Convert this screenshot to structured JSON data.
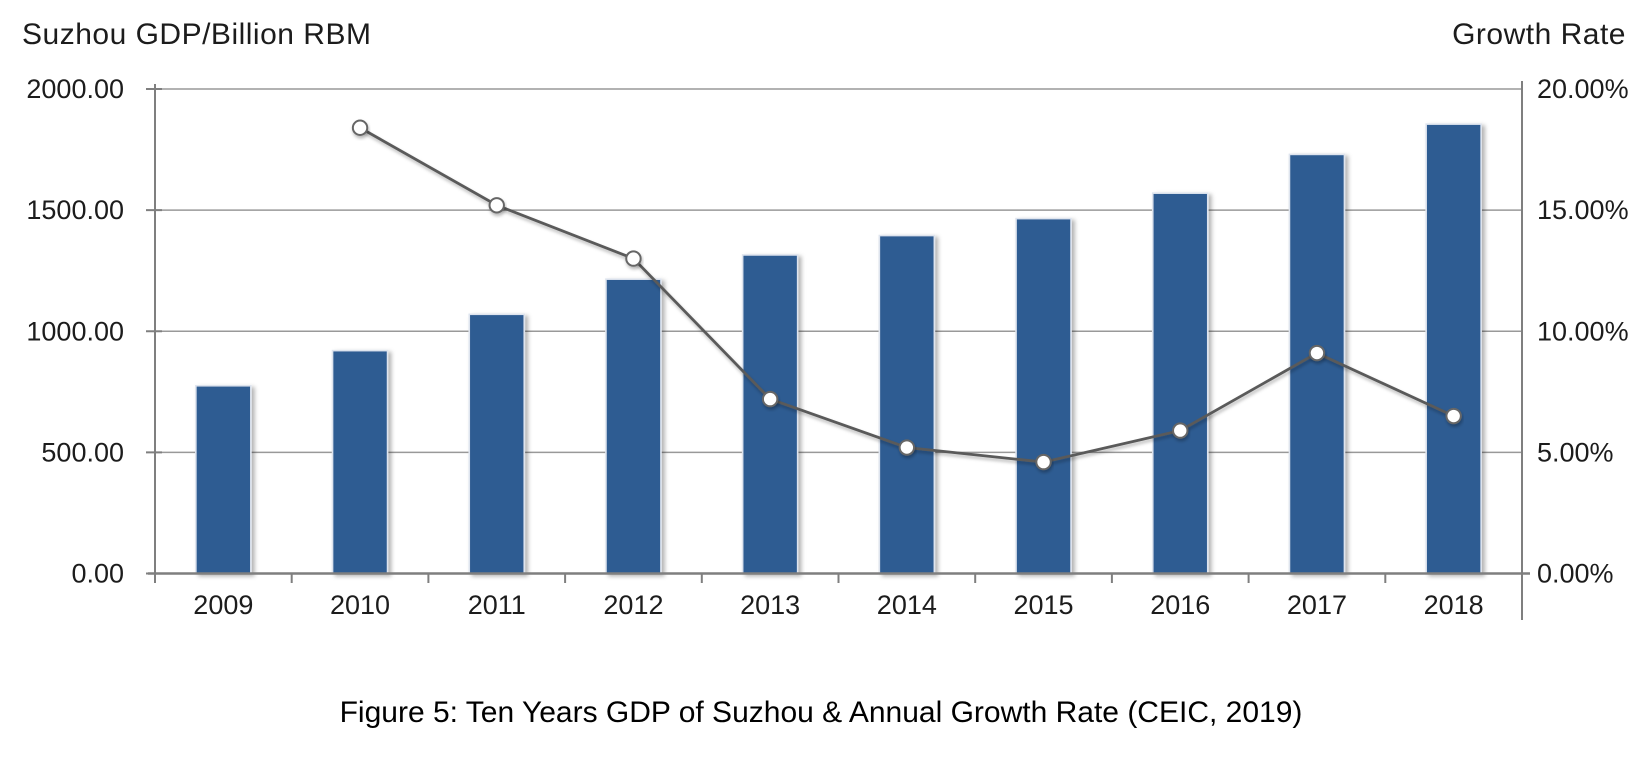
{
  "caption": "Figure 5: Ten Years GDP of Suzhou & Annual Growth Rate (CEIC, 2019)",
  "colors": {
    "bar_fill": "#2F5B92",
    "bar_edge": "#DEE4EE",
    "line": "#5A5A5A",
    "marker_fill": "#FFFFFF",
    "marker_edge": "#666666",
    "gridline": "#999999",
    "axis": "#7F7F7F",
    "label_text": "#1C1C1C"
  },
  "chart_data": {
    "type": "bar",
    "title": "",
    "categories": [
      "2009",
      "2010",
      "2011",
      "2012",
      "2013",
      "2014",
      "2015",
      "2016",
      "2017",
      "2018"
    ],
    "series": [
      {
        "name": "Suzhou GDP (Billion RMB)",
        "chart_type": "bar",
        "axis": "left",
        "values": [
          775,
          920,
          1070,
          1215,
          1315,
          1395,
          1465,
          1570,
          1730,
          1855
        ]
      },
      {
        "name": "Annual Growth Rate (%)",
        "chart_type": "line",
        "axis": "right",
        "values": [
          null,
          18.4,
          15.2,
          13.0,
          7.2,
          5.2,
          4.6,
          5.9,
          9.1,
          6.5
        ]
      }
    ],
    "left_axis": {
      "title": "Suzhou GDP/Billion RBM",
      "min": 0,
      "max": 2000,
      "tick_interval": 500,
      "tick_labels": [
        "2000.00",
        "1500.00",
        "1000.00",
        "500.00",
        "0.00"
      ]
    },
    "right_axis": {
      "title": "Growth Rate",
      "min": 0,
      "max": 20,
      "tick_interval": 5,
      "tick_labels": [
        "20.00%",
        "15.00%",
        "10.00%",
        "5.00%",
        "0.00%"
      ]
    },
    "grid": true,
    "legend": "none"
  }
}
